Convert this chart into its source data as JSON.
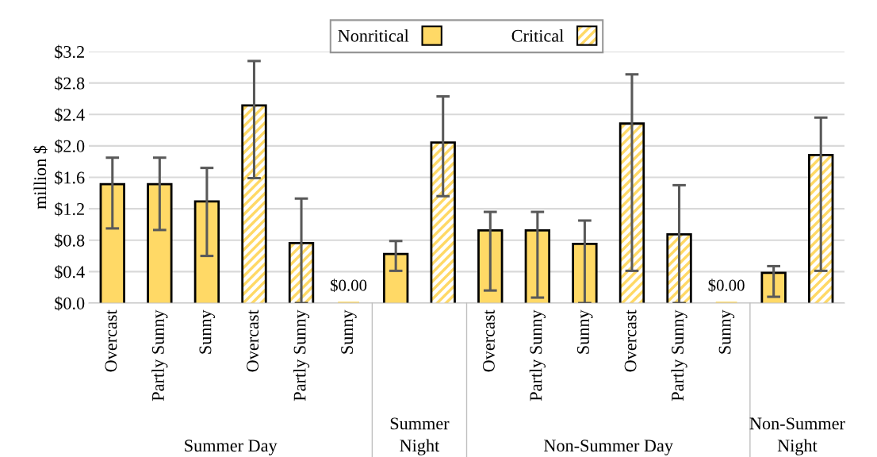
{
  "chart_data": {
    "type": "bar",
    "ylabel": "million $",
    "categories": [
      "Overcast",
      "Partly Sunny",
      "Sunny",
      "Overcast",
      "Partly Sunny",
      "Sunny",
      null,
      null,
      "Overcast",
      "Partly Sunny",
      "Sunny",
      "Overcast",
      "Partly Sunny",
      "Sunny",
      null,
      null
    ],
    "series": [
      {
        "name": "Nonritical",
        "color": "#ffd966",
        "values": [
          1.5,
          1.5,
          1.28,
          null,
          null,
          null,
          0.61,
          null,
          0.91,
          0.91,
          0.74,
          null,
          null,
          null,
          0.37,
          null
        ],
        "errors": [
          [
            0.95,
            1.85
          ],
          [
            0.93,
            1.85
          ],
          [
            0.6,
            1.72
          ],
          null,
          null,
          null,
          [
            0.41,
            0.79
          ],
          null,
          [
            0.16,
            1.16
          ],
          [
            0.07,
            1.16
          ],
          [
            0.0,
            1.05
          ],
          null,
          null,
          null,
          [
            0.08,
            0.47
          ],
          null
        ]
      },
      {
        "name": "Critical",
        "color": "#ffd966",
        "values": [
          null,
          null,
          null,
          2.5,
          0.75,
          0,
          null,
          2.03,
          null,
          null,
          null,
          2.27,
          0.86,
          0,
          null,
          1.87
        ],
        "errors": [
          null,
          null,
          null,
          [
            1.59,
            3.08
          ],
          [
            0.0,
            1.33
          ],
          null,
          null,
          [
            1.36,
            2.63
          ],
          null,
          null,
          null,
          [
            0.41,
            2.91
          ],
          [
            0.0,
            1.5
          ],
          null,
          null,
          [
            0.41,
            2.36
          ]
        ],
        "value_labels": [
          null,
          null,
          null,
          null,
          null,
          "$0.00",
          null,
          null,
          null,
          null,
          null,
          null,
          null,
          "$0.00",
          null,
          null
        ]
      }
    ],
    "annotations": [
      "Summer Day",
      "Summer\nNight",
      "Non-Summer Day",
      "Non-Summer\nNight"
    ],
    "ylim": [
      0,
      3.2
    ],
    "yticks": [
      {
        "value": 0,
        "label": "$0.0"
      },
      {
        "value": 0.4,
        "label": "$0.4"
      },
      {
        "value": 0.8,
        "label": "$0.8"
      },
      {
        "value": 1.2,
        "label": "$1.2"
      },
      {
        "value": 1.6,
        "label": "$1.6"
      },
      {
        "value": 2.0,
        "label": "$2.0"
      },
      {
        "value": 2.4,
        "label": "$2.4"
      },
      {
        "value": 2.8,
        "label": "$2.8"
      },
      {
        "value": 3.2,
        "label": "$3.2"
      }
    ],
    "grid": "y",
    "legend": "top"
  }
}
